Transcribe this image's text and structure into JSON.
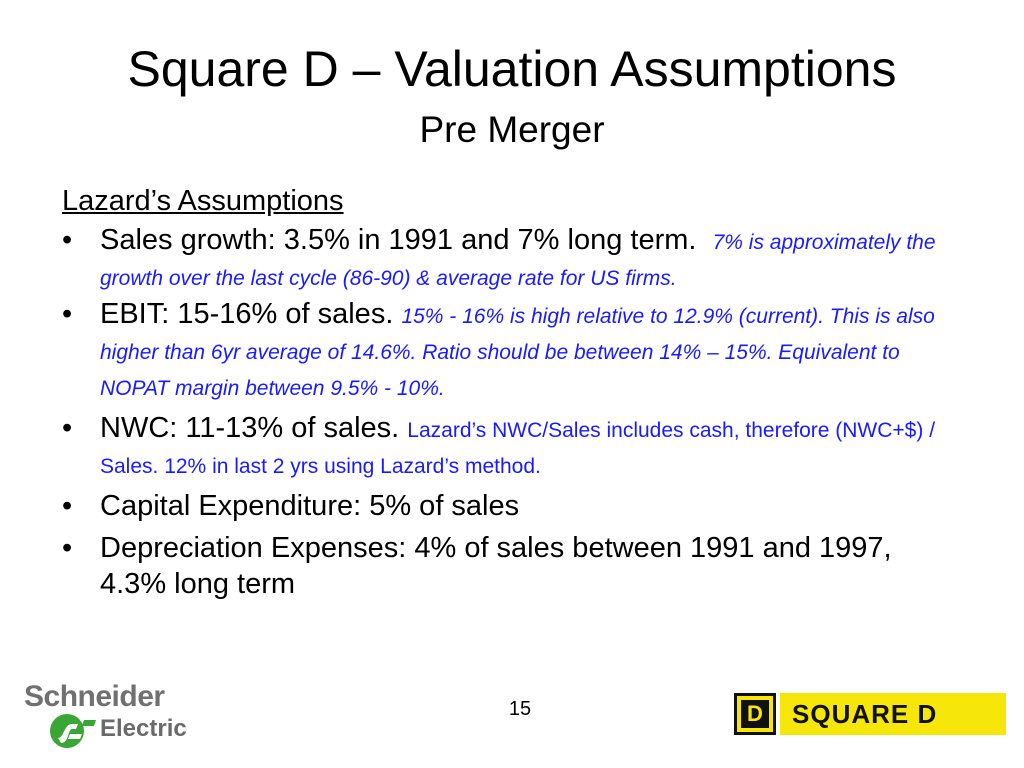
{
  "title": "Square D – Valuation Assumptions",
  "subtitle": "Pre Merger",
  "section_heading": "Lazard’s Assumptions",
  "bullets": [
    {
      "main": "Sales growth: 3.5% in 1991 and 7% long term.",
      "note": "7% is approximately the growth over the last cycle (86-90) & average rate for US firms."
    },
    {
      "main": "EBIT:  15-16% of sales.",
      "note": "15% - 16% is high relative to 12.9% (current). This is also higher than 6yr average of 14.6%. Ratio should be between 14% – 15%. Equivalent to NOPAT margin between 9.5% - 10%."
    },
    {
      "main": "NWC: 11-13% of sales.",
      "note": "Lazard’s NWC/Sales includes cash, therefore (NWC+$) / Sales. 12% in last 2 yrs using Lazard’s method."
    },
    {
      "main": "Capital Expenditure: 5% of sales"
    },
    {
      "main": "Depreciation Expenses: 4% of sales between 1991 and 1997, 4.3% long term"
    }
  ],
  "bullet_symbol": "•",
  "page_number": "15",
  "logos": {
    "schneider_top": "Schneider",
    "schneider_bottom": "Electric",
    "square_d_mark": "D",
    "square_d_text": "SQUARE D"
  },
  "colors": {
    "note_text": "#1a1aff",
    "square_d_yellow": "#f6e60a",
    "schneider_green": "#3aa635",
    "schneider_gray": "#707070"
  }
}
